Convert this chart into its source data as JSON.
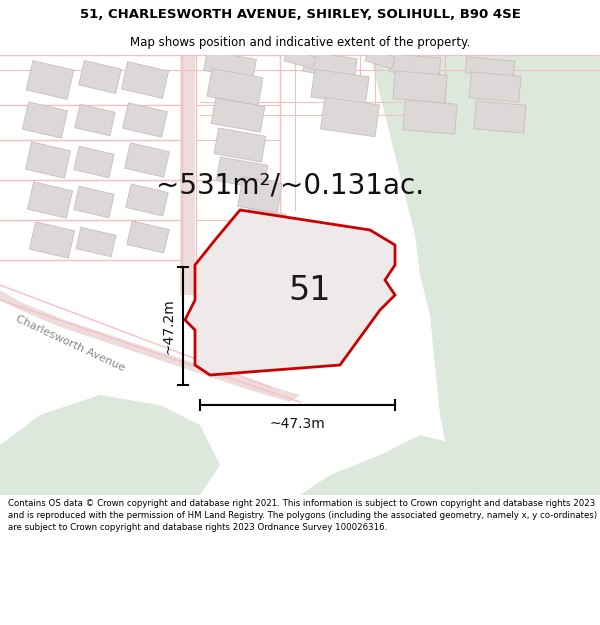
{
  "title": "51, CHARLESWORTH AVENUE, SHIRLEY, SOLIHULL, B90 4SE",
  "subtitle": "Map shows position and indicative extent of the property.",
  "area_text": "~531m²/~0.131ac.",
  "label_51": "51",
  "dim_vertical": "~47.2m",
  "dim_horizontal": "~47.3m",
  "street_label": "Charlesworth Avenue",
  "footer": "Contains OS data © Crown copyright and database right 2021. This information is subject to Crown copyright and database rights 2023 and is reproduced with the permission of HM Land Registry. The polygons (including the associated geometry, namely x, y co-ordinates) are subject to Crown copyright and database rights 2023 Ordnance Survey 100026316.",
  "bg_map_color": "#f2eeee",
  "bg_green_color": "#dde8dd",
  "plot_fill_color": "#eeeaea",
  "plot_outline_color": "#cc0000",
  "road_color": "#f5bfbf",
  "building_fill": "#ddd8d8",
  "building_edge": "#ccbcbc",
  "title_bg": "#ffffff",
  "footer_bg": "#ffffff",
  "title_fontsize": 9.5,
  "subtitle_fontsize": 8.5,
  "area_fontsize": 20,
  "label_fontsize": 24,
  "dim_fontsize": 10,
  "street_fontsize": 8,
  "footer_fontsize": 6.2
}
